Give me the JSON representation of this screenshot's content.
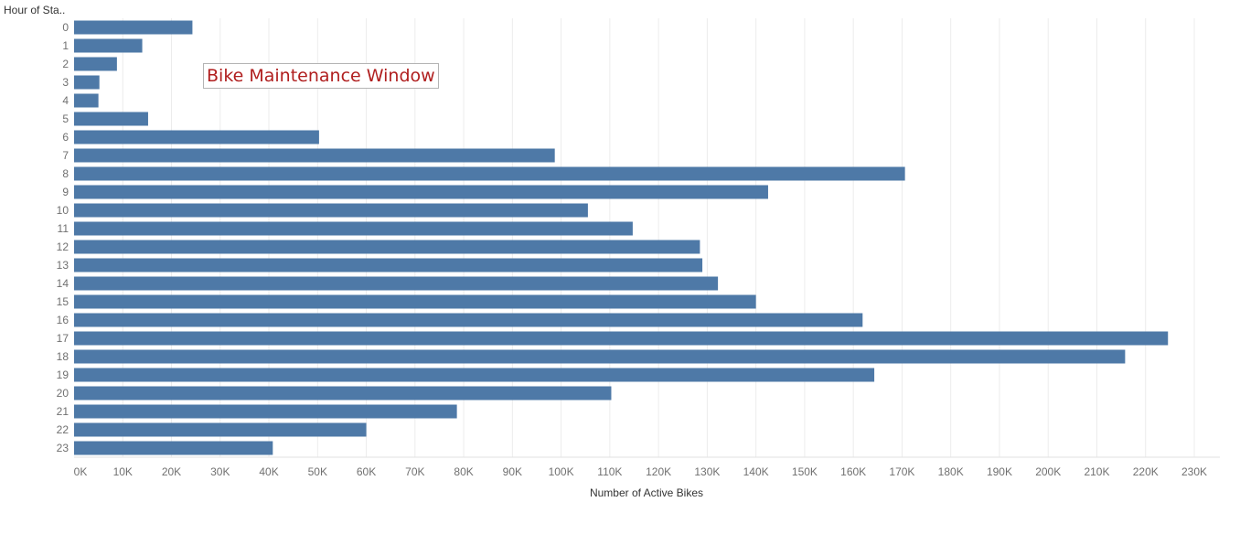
{
  "chart_data": {
    "type": "bar",
    "orientation": "horizontal",
    "row_header": "Hour of Sta..",
    "xlabel": "Number of Active Bikes",
    "categories": [
      "0",
      "1",
      "2",
      "3",
      "4",
      "5",
      "6",
      "7",
      "8",
      "9",
      "10",
      "11",
      "12",
      "13",
      "14",
      "15",
      "16",
      "17",
      "18",
      "19",
      "20",
      "21",
      "22",
      "23"
    ],
    "values": [
      24300,
      14000,
      8800,
      5200,
      5000,
      15200,
      50300,
      98700,
      170600,
      142500,
      105500,
      114700,
      128500,
      129000,
      132200,
      140000,
      161900,
      224600,
      215800,
      164300,
      110300,
      78600,
      60000,
      40800
    ],
    "xlim": [
      0,
      235000
    ],
    "x_ticks": [
      "0K",
      "10K",
      "20K",
      "30K",
      "40K",
      "50K",
      "60K",
      "70K",
      "80K",
      "90K",
      "100K",
      "110K",
      "120K",
      "130K",
      "140K",
      "150K",
      "160K",
      "170K",
      "180K",
      "190K",
      "200K",
      "210K",
      "220K",
      "230K"
    ],
    "bar_color": "#4e79a7",
    "grid": true,
    "annotation": "Bike Maintenance Window",
    "annotation_color": "#b01e1e"
  }
}
